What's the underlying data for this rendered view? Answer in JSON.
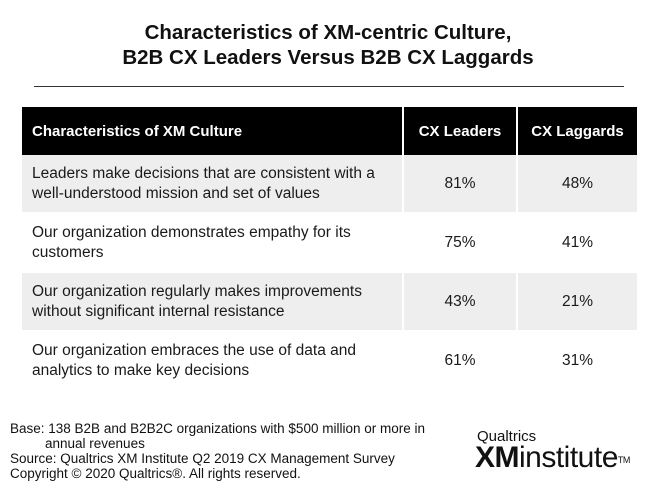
{
  "title": {
    "line1": "Characteristics of XM-centric Culture,",
    "line2": "B2B CX Leaders Versus B2B CX Laggards"
  },
  "chart_data": {
    "type": "table",
    "columns": [
      "Characteristics of XM Culture",
      "CX Leaders",
      "CX Laggards"
    ],
    "rows": [
      {
        "characteristic": "Leaders make decisions that are consistent with a well-understood mission and set of values",
        "leaders": "81%",
        "laggards": "48%"
      },
      {
        "characteristic": "Our organization demonstrates empathy for its customers",
        "leaders": "75%",
        "laggards": "41%"
      },
      {
        "characteristic": "Our organization regularly makes improvements without significant internal resistance",
        "leaders": "43%",
        "laggards": "21%"
      },
      {
        "characteristic": "Our organization embraces the use of data and analytics to make key decisions",
        "leaders": "61%",
        "laggards": "31%"
      }
    ]
  },
  "footer": {
    "base_line1": "Base: 138 B2B and B2B2C organizations with $500 million or more in",
    "base_line2": "annual revenues",
    "source": "Source: Qualtrics XM Institute Q2 2019 CX Management Survey",
    "copyright": "Copyright © 2020 Qualtrics®.  All rights reserved."
  },
  "logo": {
    "brand": "Qualtrics",
    "xm": "XM",
    "institute": "institute",
    "tm": "TM"
  },
  "colors": {
    "header_bg": "#000000",
    "header_text": "#ffffff",
    "row_shade": "#eeeeee",
    "text": "#1a1a1a"
  }
}
